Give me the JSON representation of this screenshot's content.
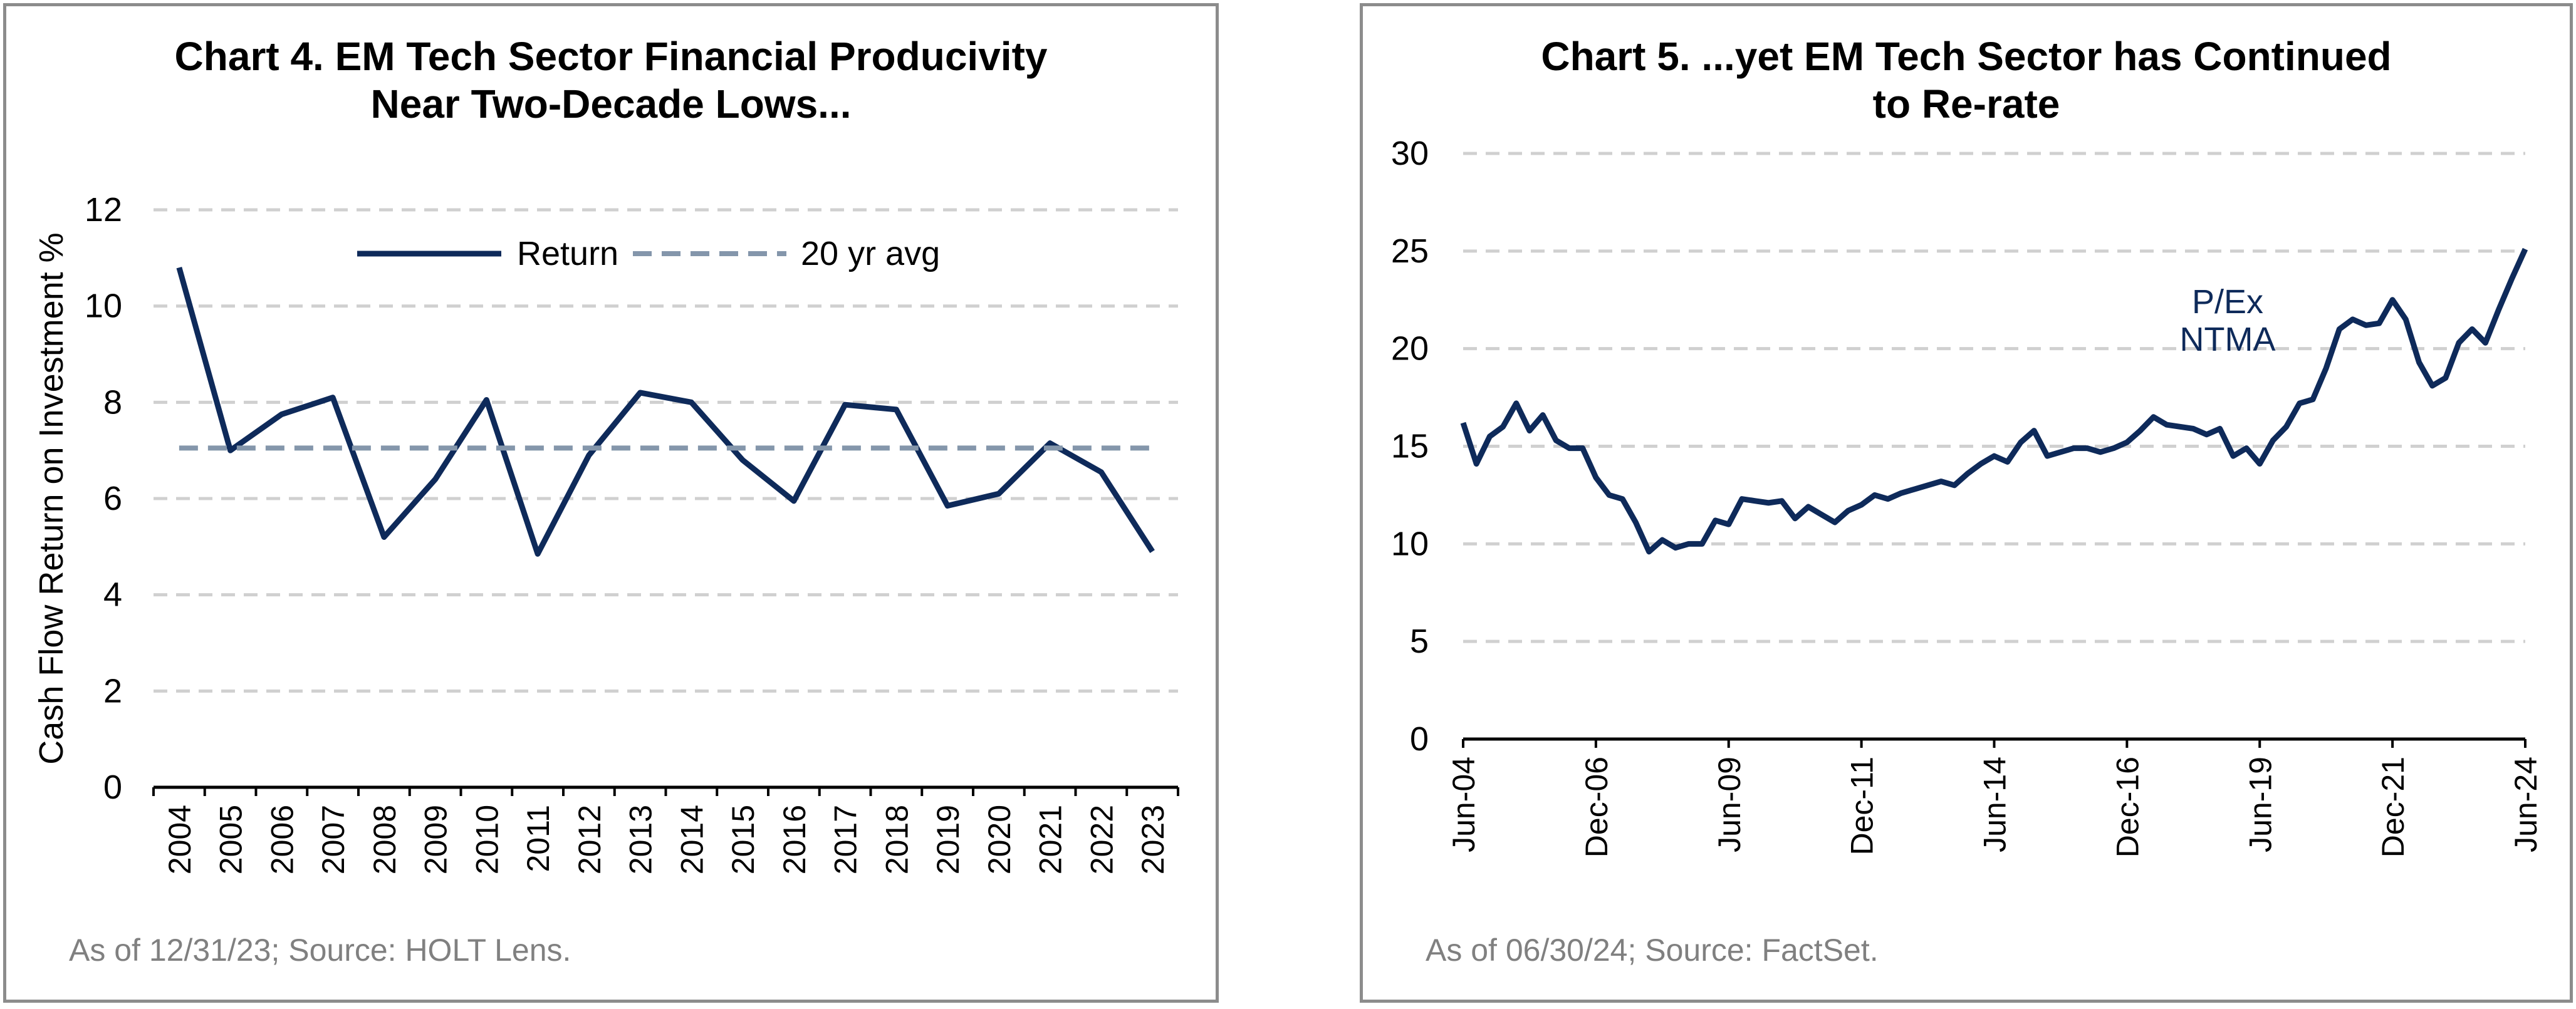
{
  "chart_data": [
    {
      "type": "line",
      "title": [
        "Chart 4. EM  Tech Sector Financial Producivity",
        "Near Two-Decade Lows..."
      ],
      "xlabel": "",
      "ylabel": "Cash Flow Return on Investment %",
      "x": [
        "2004",
        "2005",
        "2006",
        "2007",
        "2008",
        "2009",
        "2010",
        "2011",
        "2012",
        "2013",
        "2014",
        "2015",
        "2016",
        "2017",
        "2018",
        "2019",
        "2020",
        "2021",
        "2022",
        "2023"
      ],
      "ylim": [
        0,
        12
      ],
      "yticks": [
        0,
        2,
        4,
        6,
        8,
        10,
        12
      ],
      "grid": true,
      "legend": "top",
      "series": [
        {
          "name": "Return",
          "style": "solid",
          "color": "#0e2a5a",
          "values": [
            10.8,
            7.0,
            7.75,
            8.1,
            5.2,
            6.4,
            8.05,
            4.85,
            6.9,
            8.2,
            8.0,
            6.8,
            5.95,
            7.95,
            7.85,
            5.85,
            6.1,
            7.15,
            6.55,
            4.9
          ]
        },
        {
          "name": "20 yr avg",
          "style": "dashed",
          "color": "#8496ab",
          "values": [
            7.05,
            7.05,
            7.05,
            7.05,
            7.05,
            7.05,
            7.05,
            7.05,
            7.05,
            7.05,
            7.05,
            7.05,
            7.05,
            7.05,
            7.05,
            7.05,
            7.05,
            7.05,
            7.05,
            7.05
          ]
        }
      ],
      "source": "As of 12/31/23; Source: HOLT Lens."
    },
    {
      "type": "line",
      "title": [
        "Chart 5. ...yet EM Tech Sector has Continued",
        "to Re-rate"
      ],
      "xlabel": "",
      "ylabel": "",
      "xticks": [
        "Jun-04",
        "Dec-06",
        "Jun-09",
        "Dec-11",
        "Jun-14",
        "Dec-16",
        "Jun-19",
        "Dec-21",
        "Jun-24"
      ],
      "ylim": [
        0,
        30
      ],
      "yticks": [
        0,
        5,
        10,
        15,
        20,
        25,
        30
      ],
      "grid": true,
      "annotation": [
        "P/Ex",
        "NTMA"
      ],
      "series": [
        {
          "name": "P/Ex NTMA",
          "color": "#0e2a5a",
          "x": [
            "2004-06",
            "2004-09",
            "2004-12",
            "2005-03",
            "2005-06",
            "2005-09",
            "2005-12",
            "2006-03",
            "2006-06",
            "2006-09",
            "2006-12",
            "2007-03",
            "2007-06",
            "2007-09",
            "2007-12",
            "2008-03",
            "2008-06",
            "2008-09",
            "2008-12",
            "2009-03",
            "2009-06",
            "2009-09",
            "2009-12",
            "2010-03",
            "2010-06",
            "2010-09",
            "2010-12",
            "2011-03",
            "2011-06",
            "2011-09",
            "2011-12",
            "2012-03",
            "2012-06",
            "2012-09",
            "2012-12",
            "2013-03",
            "2013-06",
            "2013-09",
            "2013-12",
            "2014-03",
            "2014-06",
            "2014-09",
            "2014-12",
            "2015-03",
            "2015-06",
            "2015-09",
            "2015-12",
            "2016-03",
            "2016-06",
            "2016-09",
            "2016-12",
            "2017-03",
            "2017-06",
            "2017-09",
            "2017-12",
            "2018-03",
            "2018-06",
            "2018-09",
            "2018-12",
            "2019-03",
            "2019-06",
            "2019-09",
            "2019-12",
            "2020-03",
            "2020-06",
            "2020-09",
            "2020-12",
            "2021-03",
            "2021-06",
            "2021-09",
            "2021-12",
            "2022-03",
            "2022-06",
            "2022-09",
            "2022-12",
            "2023-03",
            "2023-06",
            "2023-09",
            "2023-12",
            "2024-03",
            "2024-06"
          ],
          "values": [
            16.2,
            14.1,
            15.5,
            16.0,
            17.2,
            15.8,
            16.6,
            15.3,
            14.9,
            14.9,
            13.4,
            12.5,
            12.3,
            11.1,
            9.6,
            10.2,
            9.8,
            10.0,
            10.0,
            11.2,
            11.0,
            12.3,
            12.2,
            12.1,
            12.2,
            11.3,
            11.9,
            11.5,
            11.1,
            11.7,
            12.0,
            12.5,
            12.3,
            12.6,
            12.8,
            13.0,
            13.2,
            13.0,
            13.6,
            14.1,
            14.5,
            14.2,
            15.2,
            15.8,
            14.5,
            14.7,
            14.9,
            14.9,
            14.7,
            14.9,
            15.2,
            15.8,
            16.5,
            16.1,
            16.0,
            15.9,
            15.6,
            15.9,
            14.5,
            14.9,
            14.1,
            15.3,
            16.0,
            17.2,
            17.4,
            19.0,
            21.0,
            21.5,
            21.2,
            21.3,
            22.5,
            21.5,
            19.3,
            18.1,
            18.5,
            20.3,
            21.0,
            20.3,
            22.0,
            23.6,
            25.1
          ]
        }
      ],
      "source": "As of 06/30/24; Source: FactSet."
    }
  ]
}
